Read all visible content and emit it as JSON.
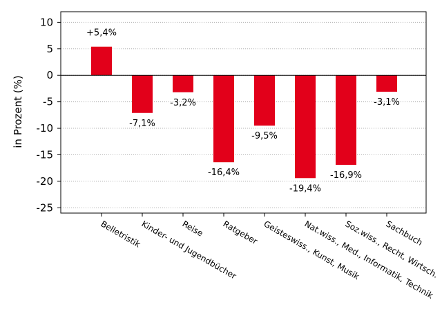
{
  "chart_data": {
    "type": "bar",
    "categories": [
      "Belletristik",
      "Kinder- und Jugendbücher",
      "Reise",
      "Ratgeber",
      "Geisteswiss., Kunst, Musik",
      "Nat.wiss., Med., Informatik, Technik",
      "Soz.wiss., Recht, Wirtsch.",
      "Sachbuch"
    ],
    "values": [
      5.4,
      -7.1,
      -3.2,
      -16.4,
      -9.5,
      -19.4,
      -16.9,
      -3.1
    ],
    "data_labels": [
      "+5,4%",
      "-7,1%",
      "-3,2%",
      "-16,4%",
      "-9,5%",
      "-19,4%",
      "-16,9%",
      "-3,1%"
    ],
    "ylabel": "in Prozent (%)",
    "xlabel": "",
    "ylim": [
      -26,
      12
    ],
    "yticks": [
      10,
      5,
      0,
      -5,
      -10,
      -15,
      -20,
      -25
    ],
    "ytick_labels": [
      "10",
      "5",
      "0",
      "-5",
      "-10",
      "-15",
      "-20",
      "-25"
    ],
    "grid": "horizontal dotted",
    "bar_color": "#e2001a",
    "legend": "none"
  }
}
